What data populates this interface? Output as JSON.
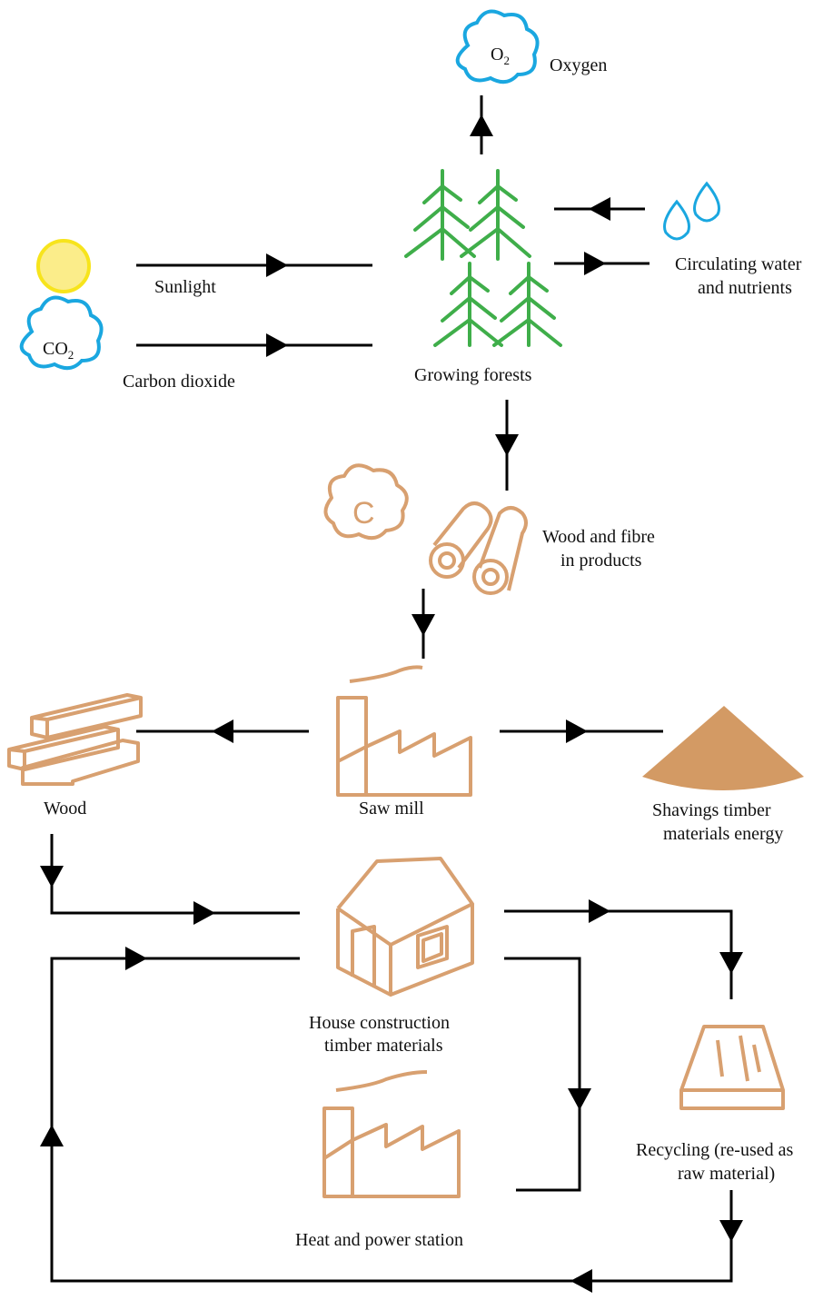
{
  "nodes": {
    "oxygen": {
      "symbol": {
        "text": "O",
        "sub": "2"
      },
      "label": "Oxygen"
    },
    "sunlight": {
      "label": "Sunlight"
    },
    "carbon_dioxide": {
      "symbol": {
        "text": "CO",
        "sub": "2"
      },
      "label": "Carbon dioxide"
    },
    "water": {
      "label": [
        "Circulating water",
        "and nutrients"
      ]
    },
    "forests": {
      "label": "Growing forests"
    },
    "carbon": {
      "symbol": "C"
    },
    "products": {
      "label": [
        "Wood and fibre",
        "in products"
      ]
    },
    "wood": {
      "label": "Wood"
    },
    "saw_mill": {
      "label": "Saw mill"
    },
    "shavings": {
      "label": [
        "Shavings timber",
        "materials energy"
      ]
    },
    "house": {
      "label": [
        "House construction",
        "timber materials"
      ]
    },
    "recycling": {
      "label": [
        "Recycling (re-used as",
        "raw material)"
      ]
    },
    "power": {
      "label": "Heat and power station"
    }
  }
}
